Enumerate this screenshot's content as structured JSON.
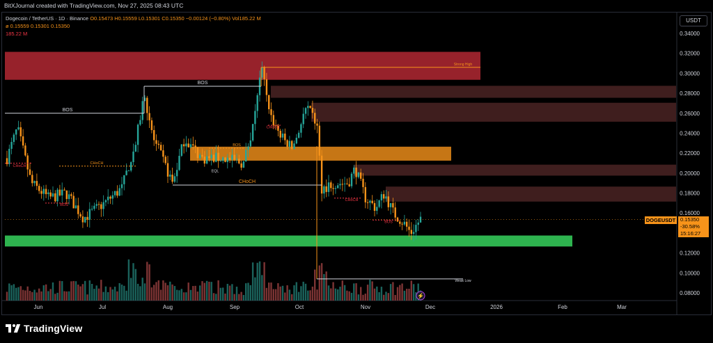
{
  "header": {
    "credit": "BitXJournal created with TradingView.com, Nov 27, 2025 08:43 UTC",
    "symbol": "Dogecoin / TetherUS · 1D · Binance",
    "ohlc": "O0.15473 H0.15559 L0.15301 C0.15350 −0.00124 (−0.80%) Vol185.22 M",
    "row2": "ø  0.15559  0.15301  0.15350",
    "row3": "185.22 M"
  },
  "currency_button": "USDT",
  "price_tag": {
    "label": "DOGEUSDT",
    "price": "0.15350",
    "change": "-30.58%",
    "countdown": "15:16:27"
  },
  "footer": {
    "brand": "TradingView"
  },
  "colors": {
    "up": "#26a69a",
    "down": "#f7931a",
    "supply_zone": "#b22833",
    "demand_zone": "#2eb34f",
    "ob_zone": "#f7931a",
    "dark_zone": "#4a2323"
  },
  "chart_data": {
    "type": "candlestick",
    "y_ticks": [
      "0.34000",
      "0.32000",
      "0.30000",
      "0.28000",
      "0.26000",
      "0.24000",
      "0.22000",
      "0.20000",
      "0.18000",
      "0.16000",
      "0.14000",
      "0.12000",
      "0.10000",
      "0.08000"
    ],
    "ylim": [
      0.075,
      0.35
    ],
    "x_labels": [
      "Jun",
      "Jul",
      "Aug",
      "Sep",
      "Oct",
      "Nov",
      "Dec",
      "2026",
      "Feb",
      "Mar"
    ],
    "annotations": [
      "BOS",
      "BOS",
      "CHoCH",
      "BOS",
      "CHoCH",
      "CHoCH",
      "BOS",
      "EQL",
      "CHoCH",
      "CHoCH",
      "BOS",
      "BOS",
      "Strong High",
      "Weak Low"
    ],
    "last_price": 0.1535
  }
}
